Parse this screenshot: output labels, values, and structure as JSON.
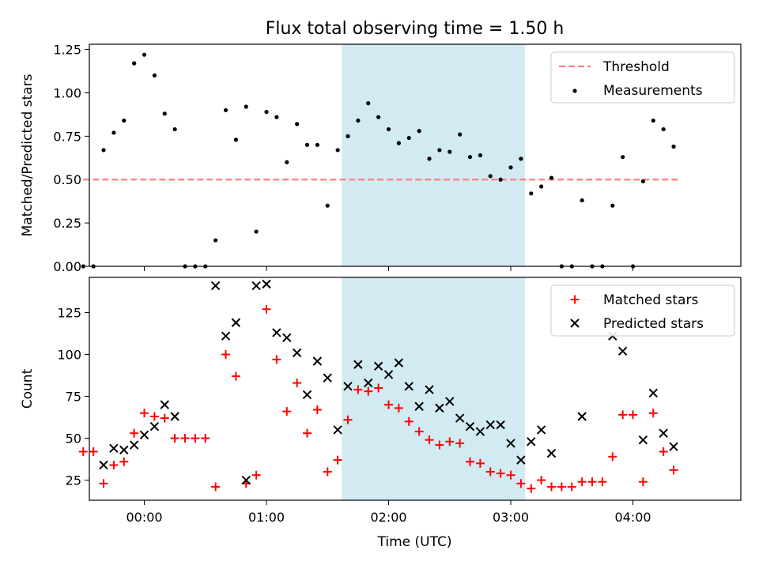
{
  "title": "Flux total observing time = 1.50 h",
  "xlabel": "Time (UTC)",
  "x_ticks": [
    "00:00",
    "01:00",
    "02:00",
    "03:00",
    "04:00"
  ],
  "colors": {
    "threshold": "#ff7f7f",
    "measurement": "#000000",
    "matched": "#ff0000",
    "predicted": "#000000",
    "span": "#add8e6"
  },
  "chart_data": [
    {
      "type": "scatter",
      "ylabel": "Matched/Predicted stars",
      "xlim": [
        "23:33",
        "04:53"
      ],
      "ylim": [
        0,
        1.28
      ],
      "y_ticks": [
        "0.00",
        "0.25",
        "0.50",
        "0.75",
        "1.00",
        "1.25"
      ],
      "shaded_span": [
        "01:37",
        "03:07"
      ],
      "legend_position": "top-right",
      "threshold": {
        "name": "Threshold",
        "y": 0.5,
        "x_range": [
          "23:30",
          "04:23"
        ]
      },
      "series": [
        {
          "name": "Measurements",
          "x": [
            "23:30",
            "23:35",
            "23:40",
            "23:45",
            "23:50",
            "23:55",
            "00:00",
            "00:05",
            "00:10",
            "00:15",
            "00:20",
            "00:25",
            "00:30",
            "00:35",
            "00:40",
            "00:45",
            "00:50",
            "00:55",
            "01:00",
            "01:05",
            "01:10",
            "01:15",
            "01:20",
            "01:25",
            "01:30",
            "01:35",
            "01:40",
            "01:45",
            "01:50",
            "01:55",
            "02:00",
            "02:05",
            "02:10",
            "02:15",
            "02:20",
            "02:25",
            "02:30",
            "02:35",
            "02:40",
            "02:45",
            "02:50",
            "02:55",
            "03:00",
            "03:05",
            "03:10",
            "03:15",
            "03:20",
            "03:25",
            "03:30",
            "03:35",
            "03:40",
            "03:45",
            "03:50",
            "03:55",
            "04:00",
            "04:05",
            "04:10",
            "04:15",
            "04:20"
          ],
          "y": [
            0.0,
            0.0,
            0.67,
            0.77,
            0.84,
            1.17,
            1.22,
            1.1,
            0.88,
            0.79,
            0.0,
            0.0,
            0.0,
            0.15,
            0.9,
            0.73,
            0.92,
            0.2,
            0.89,
            0.86,
            0.6,
            0.82,
            0.7,
            0.7,
            0.35,
            0.67,
            0.75,
            0.84,
            0.94,
            0.86,
            0.79,
            0.71,
            0.74,
            0.78,
            0.62,
            0.67,
            0.66,
            0.76,
            0.63,
            0.64,
            0.52,
            0.5,
            0.57,
            0.62,
            0.42,
            0.46,
            0.51,
            0.0,
            0.0,
            0.38,
            0.0,
            0.0,
            0.35,
            0.63,
            0.0,
            0.49,
            0.84,
            0.79,
            0.69
          ]
        }
      ]
    },
    {
      "type": "scatter",
      "ylabel": "Count",
      "xlim": [
        "23:33",
        "04:53"
      ],
      "ylim": [
        13,
        146
      ],
      "y_ticks": [
        "25",
        "50",
        "75",
        "100",
        "125"
      ],
      "shaded_span": [
        "01:37",
        "03:07"
      ],
      "legend_position": "top-right",
      "series": [
        {
          "name": "Matched stars",
          "marker": "plus",
          "x": [
            "23:30",
            "23:35",
            "23:40",
            "23:45",
            "23:50",
            "23:55",
            "00:00",
            "00:05",
            "00:10",
            "00:15",
            "00:20",
            "00:25",
            "00:30",
            "00:35",
            "00:40",
            "00:45",
            "00:50",
            "00:55",
            "01:00",
            "01:05",
            "01:10",
            "01:15",
            "01:20",
            "01:25",
            "01:30",
            "01:35",
            "01:40",
            "01:45",
            "01:50",
            "01:55",
            "02:00",
            "02:05",
            "02:10",
            "02:15",
            "02:20",
            "02:25",
            "02:30",
            "02:35",
            "02:40",
            "02:45",
            "02:50",
            "02:55",
            "03:00",
            "03:05",
            "03:10",
            "03:15",
            "03:20",
            "03:25",
            "03:30",
            "03:35",
            "03:40",
            "03:45",
            "03:50",
            "03:55",
            "04:00",
            "04:05",
            "04:10",
            "04:15",
            "04:20"
          ],
          "y": [
            42,
            42,
            23,
            34,
            36,
            53,
            65,
            63,
            62,
            50,
            50,
            50,
            50,
            21,
            100,
            87,
            23,
            28,
            127,
            97,
            66,
            83,
            53,
            67,
            30,
            37,
            61,
            79,
            78,
            80,
            70,
            68,
            60,
            54,
            49,
            46,
            48,
            47,
            36,
            35,
            30,
            29,
            28,
            23,
            20,
            25,
            21,
            21,
            21,
            24,
            24,
            24,
            39,
            64,
            64,
            24,
            65,
            42,
            31
          ]
        },
        {
          "name": "Predicted stars",
          "marker": "x",
          "x": [
            "23:40",
            "23:45",
            "23:50",
            "23:55",
            "00:00",
            "00:05",
            "00:10",
            "00:15",
            "00:35",
            "00:40",
            "00:45",
            "00:50",
            "00:55",
            "01:00",
            "01:05",
            "01:10",
            "01:15",
            "01:20",
            "01:25",
            "01:30",
            "01:35",
            "01:40",
            "01:45",
            "01:50",
            "01:55",
            "02:00",
            "02:05",
            "02:10",
            "02:15",
            "02:20",
            "02:25",
            "02:30",
            "02:35",
            "02:40",
            "02:45",
            "02:50",
            "02:55",
            "03:00",
            "03:05",
            "03:10",
            "03:15",
            "03:20",
            "03:35",
            "03:50",
            "03:55",
            "04:05",
            "04:10",
            "04:15",
            "04:20"
          ],
          "y": [
            34,
            44,
            43,
            46,
            52,
            57,
            70,
            63,
            141,
            111,
            119,
            25,
            141,
            142,
            113,
            110,
            101,
            76,
            96,
            86,
            55,
            81,
            94,
            83,
            93,
            88,
            95,
            81,
            69,
            79,
            68,
            72,
            62,
            57,
            54,
            58,
            58,
            47,
            37,
            48,
            55,
            41,
            63,
            111,
            102,
            49,
            77,
            53,
            45
          ]
        }
      ]
    }
  ]
}
